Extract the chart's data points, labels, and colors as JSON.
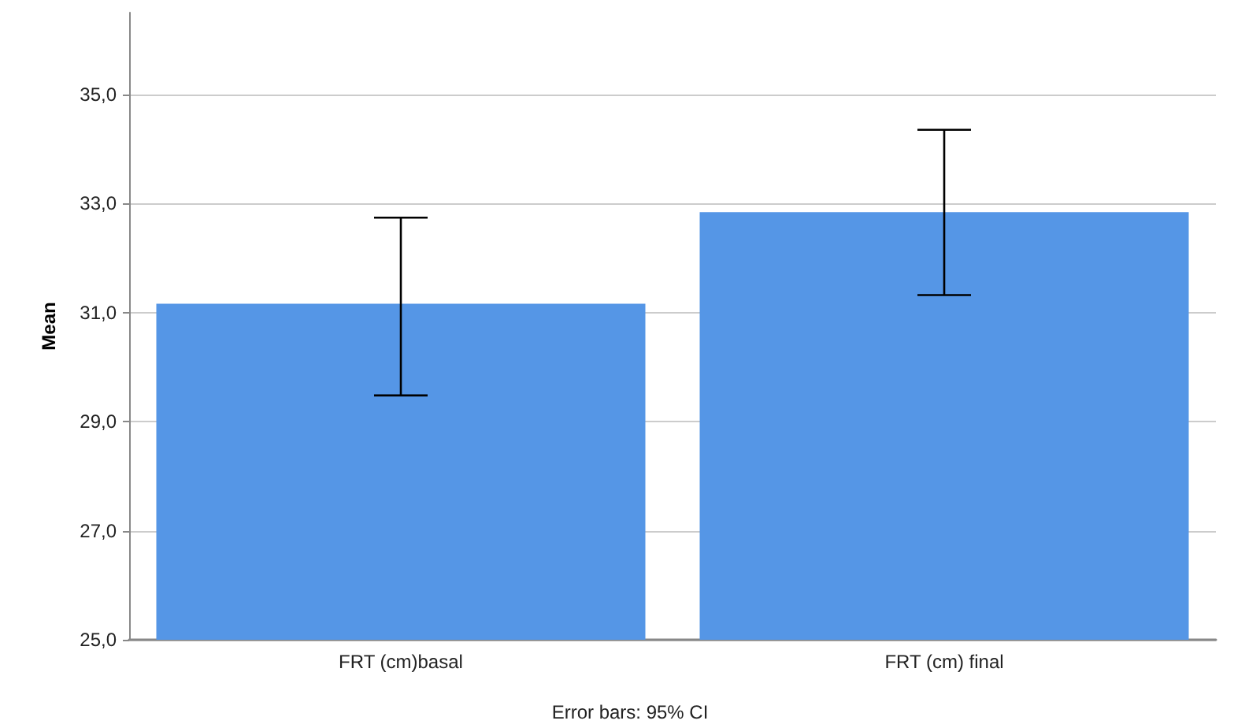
{
  "chart_data": {
    "type": "bar",
    "ylabel": "Mean",
    "categories": [
      "FRT (cm)basal",
      "FRT (cm) final"
    ],
    "values": [
      31.16,
      32.84
    ],
    "color": "#5596e6",
    "errors": [
      [
        29.48,
        32.74
      ],
      [
        31.32,
        34.35
      ]
    ],
    "ylim": [
      25,
      36.5
    ],
    "yticks": [
      {
        "value": 25,
        "label": "25,0"
      },
      {
        "value": 27,
        "label": "27,0"
      },
      {
        "value": 29,
        "label": "29,0"
      },
      {
        "value": 31,
        "label": "31,0"
      },
      {
        "value": 33,
        "label": "33,0"
      },
      {
        "value": 35,
        "label": "35,0"
      }
    ],
    "grid": "y",
    "annotations": [
      "Error bars: 95% CI"
    ]
  }
}
